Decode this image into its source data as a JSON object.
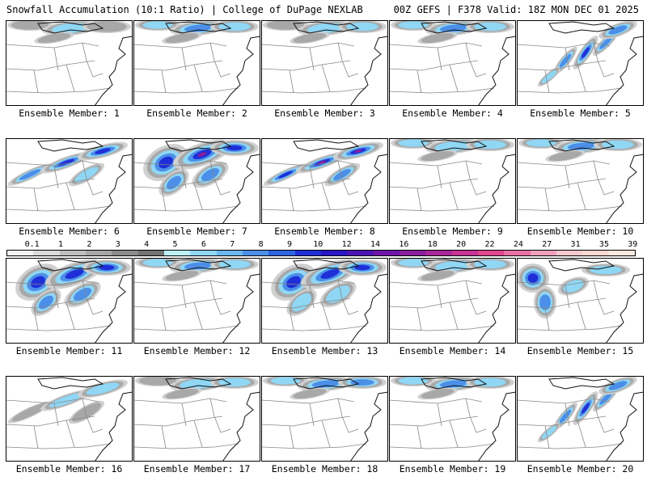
{
  "header": {
    "left": "Snowfall Accumulation (10:1 Ratio) | College of DuPage NEXLAB",
    "right": "00Z GEFS | F378 Valid: 18Z MON DEC 01 2025"
  },
  "colorbar": {
    "labels": [
      "0.1",
      "1",
      "2",
      "3",
      "4",
      "5",
      "6",
      "7",
      "8",
      "9",
      "10",
      "12",
      "14",
      "16",
      "18",
      "20",
      "22",
      "24",
      "27",
      "31",
      "35",
      "39"
    ],
    "colors": [
      "#f2f2f2",
      "#d9d9d9",
      "#bfbfbf",
      "#a6a6a6",
      "#8c8c8c",
      "#737373",
      "#bdeff7",
      "#8fd7f5",
      "#6cb6f0",
      "#4c8fe8",
      "#2f63e2",
      "#1f2fd8",
      "#2a15c9",
      "#4c12b5",
      "#6e14a8",
      "#8a1e9c",
      "#a8289a",
      "#c73396",
      "#e0468e",
      "#e86fa3",
      "#eea0bd",
      "#f5c9cf",
      "#f8d8d0",
      "#fbe9df"
    ]
  },
  "members": [
    {
      "id": 1,
      "caption": "Ensemble Member: 1",
      "intensity": 0.35,
      "pattern": "north"
    },
    {
      "id": 2,
      "caption": "Ensemble Member: 2",
      "intensity": 0.55,
      "pattern": "north"
    },
    {
      "id": 3,
      "caption": "Ensemble Member: 3",
      "intensity": 0.4,
      "pattern": "north"
    },
    {
      "id": 4,
      "caption": "Ensemble Member: 4",
      "intensity": 0.55,
      "pattern": "north"
    },
    {
      "id": 5,
      "caption": "Ensemble Member: 5",
      "intensity": 0.75,
      "pattern": "diagonal"
    },
    {
      "id": 6,
      "caption": "Ensemble Member: 6",
      "intensity": 0.85,
      "pattern": "band"
    },
    {
      "id": 7,
      "caption": "Ensemble Member: 7",
      "intensity": 0.95,
      "pattern": "wide"
    },
    {
      "id": 8,
      "caption": "Ensemble Member: 8",
      "intensity": 1.0,
      "pattern": "band"
    },
    {
      "id": 9,
      "caption": "Ensemble Member: 9",
      "intensity": 0.45,
      "pattern": "north"
    },
    {
      "id": 10,
      "caption": "Ensemble Member: 10",
      "intensity": 0.55,
      "pattern": "north"
    },
    {
      "id": 11,
      "caption": "Ensemble Member: 11",
      "intensity": 0.85,
      "pattern": "wide"
    },
    {
      "id": 12,
      "caption": "Ensemble Member: 12",
      "intensity": 0.55,
      "pattern": "north"
    },
    {
      "id": 13,
      "caption": "Ensemble Member: 13",
      "intensity": 0.8,
      "pattern": "wide"
    },
    {
      "id": 14,
      "caption": "Ensemble Member: 14",
      "intensity": 0.45,
      "pattern": "north"
    },
    {
      "id": 15,
      "caption": "Ensemble Member: 15",
      "intensity": 0.8,
      "pattern": "west"
    },
    {
      "id": 16,
      "caption": "Ensemble Member: 16",
      "intensity": 0.35,
      "pattern": "band"
    },
    {
      "id": 17,
      "caption": "Ensemble Member: 17",
      "intensity": 0.4,
      "pattern": "north"
    },
    {
      "id": 18,
      "caption": "Ensemble Member: 18",
      "intensity": 0.65,
      "pattern": "north"
    },
    {
      "id": 19,
      "caption": "Ensemble Member: 19",
      "intensity": 0.55,
      "pattern": "north"
    },
    {
      "id": 20,
      "caption": "Ensemble Member: 20",
      "intensity": 0.75,
      "pattern": "diagonal"
    }
  ]
}
